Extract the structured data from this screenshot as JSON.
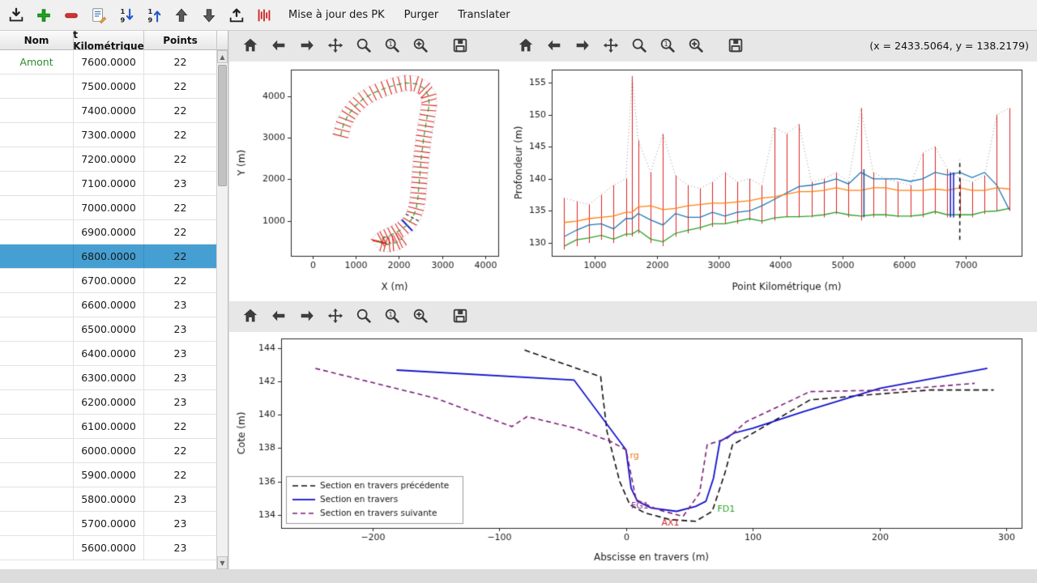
{
  "colors": {
    "selection": "#459fd2",
    "amont_green": "#2e8b2e",
    "bars_red": "#dd2222"
  },
  "app": {
    "menu_buttons": [
      "Mise à jour des PK",
      "Purger",
      "Translater"
    ],
    "coords_readout": "(x = 2433.5064,   y = 138.2179)"
  },
  "plot_toolbar": {
    "buttons": [
      {
        "name": "home"
      },
      {
        "name": "back"
      },
      {
        "name": "forward"
      },
      {
        "name": "pan"
      },
      {
        "name": "zoom"
      },
      {
        "name": "zoom-one"
      },
      {
        "name": "zoom-plus"
      },
      {
        "name": "save",
        "gap": true
      }
    ]
  },
  "table": {
    "headers": [
      "Nom",
      "t Kilométrique",
      "Points"
    ],
    "selected_index": 8,
    "rows": [
      [
        "Amont",
        "7600.0000",
        "22"
      ],
      [
        "",
        "7500.0000",
        "22"
      ],
      [
        "",
        "7400.0000",
        "22"
      ],
      [
        "",
        "7300.0000",
        "22"
      ],
      [
        "",
        "7200.0000",
        "22"
      ],
      [
        "",
        "7100.0000",
        "23"
      ],
      [
        "",
        "7000.0000",
        "22"
      ],
      [
        "",
        "6900.0000",
        "22"
      ],
      [
        "",
        "6800.0000",
        "22"
      ],
      [
        "",
        "6700.0000",
        "22"
      ],
      [
        "",
        "6600.0000",
        "23"
      ],
      [
        "",
        "6500.0000",
        "23"
      ],
      [
        "",
        "6400.0000",
        "23"
      ],
      [
        "",
        "6300.0000",
        "23"
      ],
      [
        "",
        "6200.0000",
        "23"
      ],
      [
        "",
        "6100.0000",
        "22"
      ],
      [
        "",
        "6000.0000",
        "22"
      ],
      [
        "",
        "5900.0000",
        "22"
      ],
      [
        "",
        "5800.0000",
        "23"
      ],
      [
        "",
        "5700.0000",
        "23"
      ],
      [
        "",
        "5600.0000",
        "23"
      ]
    ]
  },
  "chart_data": [
    {
      "type": "line",
      "name": "plan-view",
      "xlabel": "X (m)",
      "ylabel": "Y (m)",
      "xlim": [
        -500,
        4300
      ],
      "ylim": [
        150,
        4650
      ],
      "xticks": [
        0,
        1000,
        2000,
        3000,
        4000
      ],
      "yticks": [
        1000,
        2000,
        3000,
        4000
      ],
      "tick_half_length": 180,
      "selected_tick_index": 24,
      "dashed_tick_index": 23,
      "centerline": [
        [
          650,
          3050
        ],
        [
          720,
          3330
        ],
        [
          830,
          3560
        ],
        [
          980,
          3760
        ],
        [
          1170,
          3940
        ],
        [
          1400,
          4080
        ],
        [
          1650,
          4190
        ],
        [
          1900,
          4270
        ],
        [
          2150,
          4330
        ],
        [
          2400,
          4310
        ],
        [
          2590,
          4190
        ],
        [
          2690,
          4010
        ],
        [
          2700,
          3790
        ],
        [
          2660,
          3540
        ],
        [
          2620,
          3290
        ],
        [
          2580,
          3040
        ],
        [
          2550,
          2790
        ],
        [
          2520,
          2540
        ],
        [
          2500,
          2290
        ],
        [
          2480,
          2040
        ],
        [
          2460,
          1790
        ],
        [
          2440,
          1540
        ],
        [
          2400,
          1290
        ],
        [
          2320,
          1070
        ],
        [
          2190,
          890
        ],
        [
          2010,
          760
        ],
        [
          1820,
          660
        ],
        [
          1640,
          575
        ],
        [
          1530,
          505
        ],
        [
          1610,
          445
        ],
        [
          1780,
          430
        ],
        [
          1950,
          475
        ],
        [
          2070,
          565
        ]
      ]
    },
    {
      "type": "line",
      "name": "longitudinal-profile",
      "xlabel": "Point Kilométrique (m)",
      "ylabel": "Profondeur (m)",
      "xlim": [
        300,
        7900
      ],
      "ylim": [
        128,
        157
      ],
      "xticks": [
        1000,
        2000,
        3000,
        4000,
        5000,
        6000,
        7000
      ],
      "yticks": [
        130,
        135,
        140,
        145,
        150,
        155
      ],
      "x": [
        500,
        700,
        900,
        1100,
        1300,
        1500,
        1600,
        1700,
        1900,
        2100,
        2300,
        2500,
        2700,
        2900,
        3100,
        3300,
        3500,
        3700,
        3900,
        4100,
        4300,
        4500,
        4700,
        4900,
        5100,
        5300,
        5500,
        5700,
        5900,
        6100,
        6300,
        6500,
        6700,
        6900,
        7100,
        7300,
        7500,
        7700
      ],
      "bars": {
        "color": "#dd2222",
        "min": [
          129,
          129.5,
          130,
          130.5,
          130,
          131,
          131,
          131.5,
          130,
          129.5,
          131,
          131.5,
          132,
          132.5,
          133,
          133,
          133.5,
          133,
          133.5,
          134,
          134,
          134,
          134,
          134.5,
          134,
          133.5,
          134,
          134,
          134,
          134,
          134,
          134.5,
          134,
          134,
          134,
          134.5,
          135,
          135
        ],
        "max": [
          137,
          136.5,
          136,
          137.5,
          139,
          140,
          156,
          146,
          141,
          147,
          140.5,
          139,
          138.5,
          139.5,
          141,
          139.5,
          140,
          139,
          148,
          147,
          148.5,
          139.5,
          140,
          141,
          139.5,
          151,
          141,
          140,
          139.5,
          139,
          144,
          145,
          141.5,
          140,
          139.5,
          140.5,
          150,
          151
        ]
      },
      "series": [
        {
          "name": "fond",
          "color": "#2ca02c",
          "values": [
            129.5,
            130.5,
            130.8,
            131.2,
            130.6,
            131.4,
            131.4,
            132,
            130.6,
            130.2,
            131.5,
            132,
            132.4,
            133,
            133,
            133.4,
            133.8,
            133.4,
            133.9,
            134.1,
            134.1,
            134.2,
            134.4,
            134.8,
            134.4,
            134.2,
            134.4,
            134.4,
            134.2,
            134.2,
            134.4,
            134.9,
            134.4,
            134.4,
            134.4,
            134.9,
            135,
            135.4
          ]
        },
        {
          "name": "ligne-eau-basse",
          "color": "#1f77b4",
          "values": [
            131,
            132,
            132.8,
            133,
            132.2,
            133.8,
            133.8,
            134.6,
            133.6,
            132.8,
            134.6,
            134,
            134,
            134.8,
            134.2,
            134.8,
            135,
            135.8,
            136.8,
            137.8,
            138.8,
            139,
            139.4,
            140,
            139.2,
            141,
            140,
            140,
            140,
            139.6,
            140,
            141,
            140.6,
            141,
            140.2,
            141,
            139,
            135.2
          ]
        },
        {
          "name": "ligne-eau-haute",
          "color": "#ff7f0e",
          "values": [
            133.2,
            133.4,
            133.8,
            134,
            134.2,
            134.8,
            134.8,
            135.6,
            135.8,
            135.2,
            135.4,
            135.8,
            136,
            136.2,
            136.2,
            136.4,
            136.6,
            137,
            137.2,
            137.6,
            138,
            138,
            138.2,
            138.6,
            138.2,
            138.2,
            138.6,
            138.6,
            138.2,
            138.2,
            138.2,
            138.4,
            138.2,
            138.6,
            138.2,
            138.2,
            138.6,
            138.4
          ]
        }
      ],
      "markers": [
        {
          "x": 5350,
          "y0": 134,
          "y1": 141.5,
          "color": "#334d99",
          "dash": []
        },
        {
          "x": 6750,
          "y0": 134,
          "y1": 141,
          "color": "#2222cc",
          "dash": []
        },
        {
          "x": 6800,
          "y0": 134,
          "y1": 141,
          "color": "#2222cc",
          "dash": []
        },
        {
          "x": 6900,
          "y0": 130.5,
          "y1": 143,
          "color": "#222222",
          "dash": [
            5,
            4
          ]
        }
      ]
    },
    {
      "type": "line",
      "name": "cross-section",
      "xlabel": "Abscisse en travers (m)",
      "ylabel": "Cote (m)",
      "xlim": [
        -272,
        312
      ],
      "ylim": [
        133.2,
        144.6
      ],
      "xticks": [
        -200,
        -100,
        0,
        100,
        200,
        300
      ],
      "yticks": [
        134,
        136,
        138,
        140,
        142,
        144
      ],
      "series": [
        {
          "name": "precedente",
          "label": "Section en travers précédente",
          "color": "#111111",
          "dash": [
            7,
            4
          ],
          "width": 1.6,
          "points": [
            [
              -80,
              143.9
            ],
            [
              -20,
              142.3
            ],
            [
              -15,
              139
            ],
            [
              -5,
              136
            ],
            [
              3,
              134.6
            ],
            [
              15,
              134.1
            ],
            [
              35,
              133.7
            ],
            [
              55,
              133.6
            ],
            [
              68,
              134.2
            ],
            [
              78,
              136.5
            ],
            [
              84,
              138.2
            ],
            [
              100,
              138.9
            ],
            [
              145,
              140.9
            ],
            [
              190,
              141.2
            ],
            [
              240,
              141.5
            ],
            [
              290,
              141.5
            ]
          ]
        },
        {
          "name": "courante",
          "label": "Section en travers",
          "color": "#1414cc",
          "dash": [],
          "width": 1.8,
          "points": [
            [
              -181,
              142.7
            ],
            [
              -41,
              142.1
            ],
            [
              0,
              137.9
            ],
            [
              4,
              135.6
            ],
            [
              9,
              134.8
            ],
            [
              20,
              134.4
            ],
            [
              40,
              134.2
            ],
            [
              55,
              134.5
            ],
            [
              63,
              134.8
            ],
            [
              69,
              136.2
            ],
            [
              74,
              138.4
            ],
            [
              85,
              138.9
            ],
            [
              100,
              139.2
            ],
            [
              140,
              140.2
            ],
            [
              200,
              141.6
            ],
            [
              285,
              142.8
            ]
          ]
        },
        {
          "name": "suivante",
          "label": "Section en travers suivante",
          "color": "#7a1f7a",
          "dash": [
            6,
            4
          ],
          "width": 1.6,
          "points": [
            [
              -245,
              142.8
            ],
            [
              -150,
              141.0
            ],
            [
              -90,
              139.3
            ],
            [
              -78,
              139.9
            ],
            [
              -40,
              139.2
            ],
            [
              -12,
              138.4
            ],
            [
              0,
              137.9
            ],
            [
              8,
              134.9
            ],
            [
              25,
              134.3
            ],
            [
              45,
              133.9
            ],
            [
              58,
              135.3
            ],
            [
              64,
              138.2
            ],
            [
              80,
              138.6
            ],
            [
              95,
              139.6
            ],
            [
              145,
              141.4
            ],
            [
              210,
              141.5
            ],
            [
              275,
              141.9
            ]
          ]
        }
      ],
      "annotations": [
        {
          "text": "rg",
          "x": 3,
          "y": 137.55,
          "color": "#e87b1e"
        },
        {
          "text": "FG1",
          "x": 4,
          "y": 134.5,
          "color": "#8a3a9a"
        },
        {
          "text": "AX1",
          "x": 28,
          "y": 133.5,
          "color": "#cc2222"
        },
        {
          "text": "FD1",
          "x": 72,
          "y": 134.3,
          "color": "#2ca02c"
        }
      ],
      "legend": {
        "position": "lower-left"
      }
    }
  ]
}
